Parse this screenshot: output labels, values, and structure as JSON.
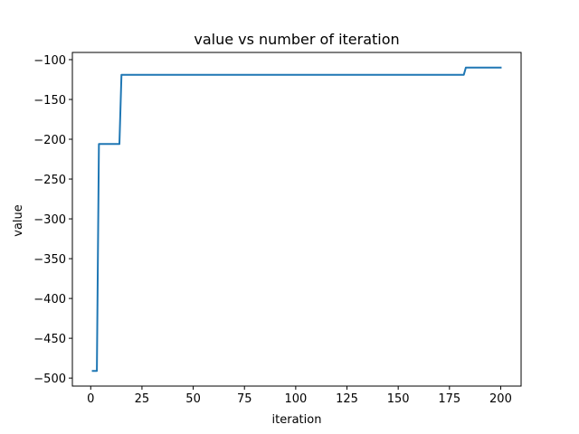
{
  "chart_data": {
    "type": "line",
    "title": "value vs number of iteration",
    "xlabel": "iteration",
    "ylabel": "value",
    "xlim": [
      -8.95,
      209.95
    ],
    "ylim": [
      -510.05,
      -90.95
    ],
    "xticks": [
      0,
      25,
      50,
      75,
      100,
      125,
      150,
      175,
      200
    ],
    "yticks": [
      -500,
      -450,
      -400,
      -350,
      -300,
      -250,
      -200,
      -150,
      -100
    ],
    "grid": false,
    "legend": "none",
    "line_color": "#1f77b4",
    "series": [
      {
        "x": [
          1,
          2,
          3,
          4,
          13,
          14,
          15,
          181,
          182,
          183,
          200
        ],
        "y": [
          -491,
          -491,
          -491,
          -206,
          -206,
          -206,
          -119,
          -119,
          -119,
          -110,
          -110
        ]
      }
    ]
  }
}
